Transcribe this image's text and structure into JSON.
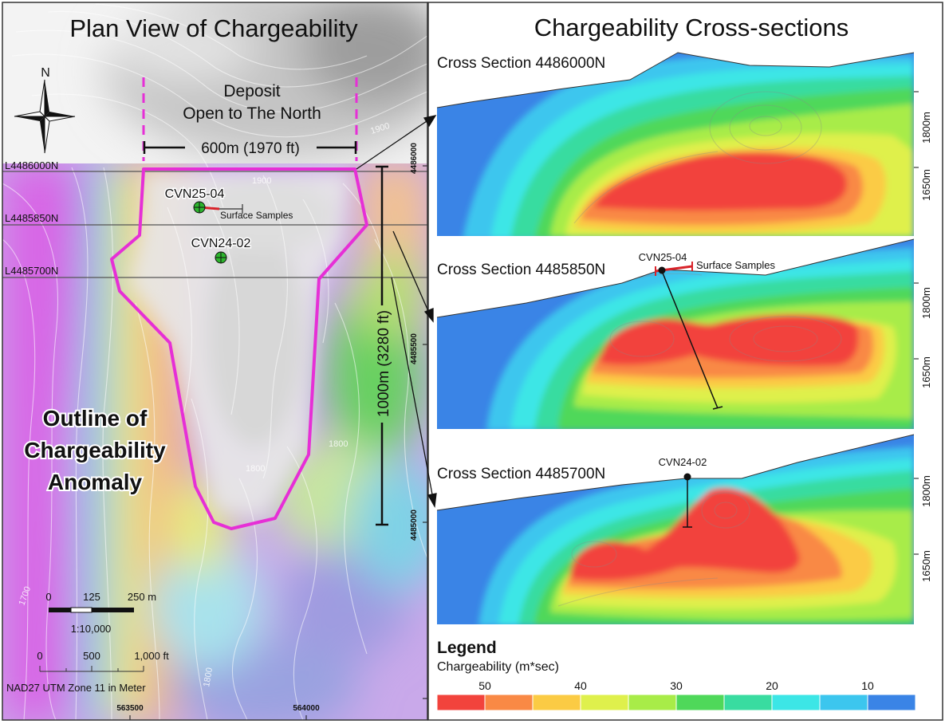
{
  "plan": {
    "title": "Plan View of Chargeability",
    "north_label": "N",
    "deposit_label_line1": "Deposit",
    "deposit_label_line2": "Open to The North",
    "width_label": "600m (1970 ft)",
    "length_label": "1000m (3280 ft)",
    "lines": [
      {
        "label": "L4486000N",
        "northing": 4486000
      },
      {
        "label": "L4485850N",
        "northing": 4485850
      },
      {
        "label": "L4485700N",
        "northing": 4485700
      }
    ],
    "drillholes": [
      {
        "name": "CVN25-04"
      },
      {
        "name": "CVN24-02"
      }
    ],
    "surface_samples_label": "Surface Samples",
    "anomaly_label": [
      "Outline of",
      "Chargeability",
      "Anomaly"
    ],
    "contour_labels": [
      "1900",
      "1900",
      "1800",
      "1800",
      "1700",
      "1800"
    ],
    "northing_ticks": [
      "4486000",
      "4485500",
      "4485000"
    ],
    "easting_ticks": [
      "563500",
      "564000"
    ],
    "scale_m": {
      "ticks": [
        "0",
        "125",
        "250 m"
      ],
      "ratio": "1:10,000"
    },
    "scale_ft": {
      "ticks": [
        "0",
        "500",
        "1,000 ft"
      ]
    },
    "projection": "NAD27 UTM Zone 11 in Meter",
    "outline_color": "#e62fd6"
  },
  "sections": {
    "title": "Chargeability Cross-sections",
    "panels": [
      {
        "title": "Cross Section 4486000N",
        "elev_labels": [
          "1800m",
          "1650m"
        ]
      },
      {
        "title": "Cross Section 4485850N",
        "elev_labels": [
          "1800m",
          "1650m"
        ],
        "hole": "CVN25-04",
        "samples_label": "Surface Samples"
      },
      {
        "title": "Cross Section 4485700N",
        "elev_labels": [
          "1800m",
          "1650m"
        ],
        "hole": "CVN24-02"
      }
    ]
  },
  "legend": {
    "title": "Legend",
    "subtitle": "Chargeability (m*sec)",
    "ticks": [
      "50",
      "40",
      "30",
      "20",
      "10"
    ],
    "colors": [
      "#f2433c",
      "#f98945",
      "#fbcb44",
      "#dff04c",
      "#a8ec48",
      "#4fd85a",
      "#39dca0",
      "#3ce6e6",
      "#3cc6ee",
      "#3a84e6"
    ]
  }
}
